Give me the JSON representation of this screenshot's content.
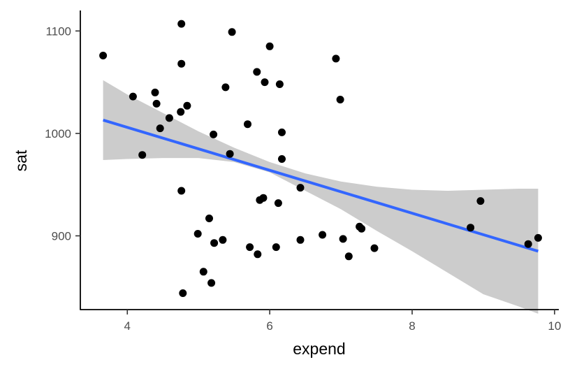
{
  "chart_data": {
    "type": "scatter",
    "xlabel": "expend",
    "ylabel": "sat",
    "xlim": [
      3.34,
      10.06
    ],
    "ylim": [
      828,
      1120
    ],
    "x_ticks": [
      4,
      6,
      8,
      10
    ],
    "y_ticks": [
      900,
      1000,
      1100
    ],
    "grid": false,
    "points": [
      {
        "x": 3.66,
        "y": 1076
      },
      {
        "x": 4.08,
        "y": 1036
      },
      {
        "x": 4.21,
        "y": 979
      },
      {
        "x": 4.39,
        "y": 1040
      },
      {
        "x": 4.41,
        "y": 1029
      },
      {
        "x": 4.46,
        "y": 1005
      },
      {
        "x": 4.59,
        "y": 1015
      },
      {
        "x": 4.76,
        "y": 1107
      },
      {
        "x": 4.76,
        "y": 1068
      },
      {
        "x": 4.75,
        "y": 1021
      },
      {
        "x": 4.76,
        "y": 944
      },
      {
        "x": 4.78,
        "y": 844
      },
      {
        "x": 4.84,
        "y": 1027
      },
      {
        "x": 4.99,
        "y": 902
      },
      {
        "x": 5.07,
        "y": 865
      },
      {
        "x": 5.15,
        "y": 917
      },
      {
        "x": 5.18,
        "y": 854
      },
      {
        "x": 5.21,
        "y": 999
      },
      {
        "x": 5.22,
        "y": 893
      },
      {
        "x": 5.34,
        "y": 896
      },
      {
        "x": 5.38,
        "y": 1045
      },
      {
        "x": 5.44,
        "y": 980
      },
      {
        "x": 5.47,
        "y": 1099
      },
      {
        "x": 5.69,
        "y": 1009
      },
      {
        "x": 5.72,
        "y": 889
      },
      {
        "x": 5.82,
        "y": 1060
      },
      {
        "x": 5.83,
        "y": 882
      },
      {
        "x": 5.86,
        "y": 935
      },
      {
        "x": 5.91,
        "y": 937
      },
      {
        "x": 5.93,
        "y": 1050
      },
      {
        "x": 6.0,
        "y": 1085
      },
      {
        "x": 6.09,
        "y": 889
      },
      {
        "x": 6.12,
        "y": 932
      },
      {
        "x": 6.14,
        "y": 1048
      },
      {
        "x": 6.17,
        "y": 1001
      },
      {
        "x": 6.17,
        "y": 975
      },
      {
        "x": 6.43,
        "y": 947
      },
      {
        "x": 6.43,
        "y": 896
      },
      {
        "x": 6.74,
        "y": 901
      },
      {
        "x": 6.93,
        "y": 1073
      },
      {
        "x": 6.99,
        "y": 1033
      },
      {
        "x": 7.03,
        "y": 897
      },
      {
        "x": 7.11,
        "y": 880
      },
      {
        "x": 7.26,
        "y": 909
      },
      {
        "x": 7.29,
        "y": 907
      },
      {
        "x": 7.47,
        "y": 888
      },
      {
        "x": 8.82,
        "y": 908
      },
      {
        "x": 8.96,
        "y": 934
      },
      {
        "x": 9.63,
        "y": 892
      },
      {
        "x": 9.77,
        "y": 898
      }
    ],
    "fit_line": {
      "type": "lm",
      "color": "#3366FF",
      "start": {
        "x": 3.66,
        "y": 1013
      },
      "end": {
        "x": 9.77,
        "y": 885
      }
    },
    "confidence_band": {
      "color": "#cccccc",
      "x": [
        3.66,
        4.0,
        4.5,
        5.0,
        5.5,
        6.0,
        6.5,
        7.0,
        7.5,
        8.0,
        8.5,
        9.0,
        9.5,
        9.77
      ],
      "upper": [
        1052,
        1038,
        1020,
        1002,
        986,
        972,
        961,
        953,
        948,
        945,
        944,
        945,
        946,
        946
      ],
      "lower": [
        974,
        975,
        976,
        976,
        972,
        962,
        944,
        926,
        905,
        885,
        864,
        843,
        831,
        824
      ]
    }
  }
}
